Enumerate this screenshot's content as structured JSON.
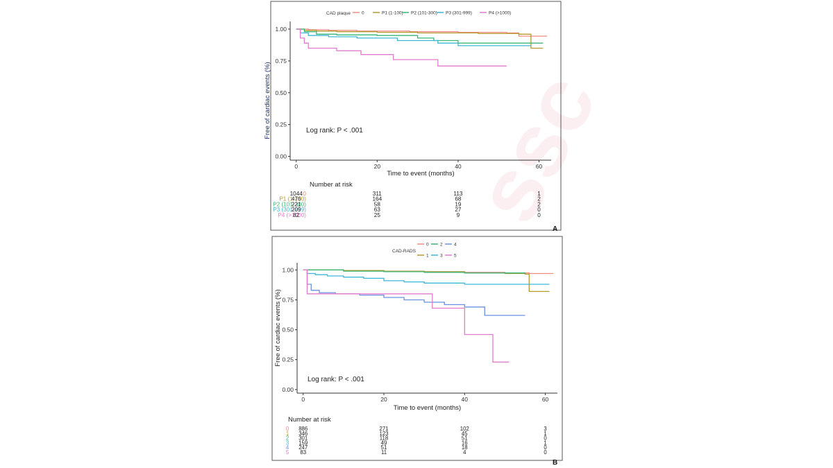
{
  "colors": {
    "s0": "#F08C82",
    "s1": "#B59A2E",
    "s2": "#3AB679",
    "s3": "#3EB7D6",
    "s4": "#6C90E0",
    "s5": "#E07CCB",
    "axis": "#333333",
    "watermark": "#FBE3E6"
  },
  "chart_data": [
    {
      "type": "line",
      "panel_label": "A",
      "title": "",
      "xlabel": "Time to event (months)",
      "ylabel": "Free of cardiac events (%)",
      "xlim": [
        -1.5,
        63
      ],
      "ylim": [
        -0.03,
        1.06
      ],
      "xticks": [
        0,
        20,
        40,
        60
      ],
      "yticks": [
        "0.00",
        "0.25",
        "0.50",
        "0.75",
        "1.00"
      ],
      "legend": {
        "title": "CAD plaque",
        "position": "top",
        "entries": [
          "0",
          "P1 (1-100)",
          "P2 (101-300)",
          "P3 (301-999)",
          "P4 (>1000)"
        ]
      },
      "annotation": "Log rank: P < .001",
      "series": [
        {
          "name": "0",
          "color": "s0",
          "x": [
            0,
            3,
            8,
            15,
            28,
            40,
            52,
            55,
            62
          ],
          "y": [
            1.0,
            0.995,
            0.99,
            0.985,
            0.98,
            0.975,
            0.97,
            0.945,
            0.945
          ]
        },
        {
          "name": "P1 (1-100)",
          "color": "s1",
          "x": [
            0,
            2,
            5,
            10,
            20,
            30,
            45,
            55,
            58,
            61
          ],
          "y": [
            1.0,
            0.99,
            0.985,
            0.98,
            0.975,
            0.97,
            0.965,
            0.96,
            0.85,
            0.85
          ]
        },
        {
          "name": "P2 (101-300)",
          "color": "s2",
          "x": [
            0,
            2,
            5,
            10,
            20,
            30,
            34,
            40,
            61
          ],
          "y": [
            1.0,
            0.98,
            0.96,
            0.955,
            0.95,
            0.93,
            0.91,
            0.89,
            0.89
          ]
        },
        {
          "name": "P3 (301-999)",
          "color": "s3",
          "x": [
            0,
            1,
            3,
            8,
            15,
            25,
            35,
            40,
            58
          ],
          "y": [
            1.0,
            0.97,
            0.95,
            0.94,
            0.93,
            0.91,
            0.89,
            0.87,
            0.87
          ]
        },
        {
          "name": "P4 (>1000)",
          "color": "s5",
          "x": [
            0,
            1,
            2,
            3,
            10,
            16,
            24,
            35,
            52
          ],
          "y": [
            1.0,
            0.93,
            0.89,
            0.85,
            0.83,
            0.8,
            0.76,
            0.71,
            0.71
          ]
        }
      ],
      "risk_table": {
        "title": "Number at risk",
        "times": [
          0,
          20,
          40,
          60
        ],
        "rows": [
          {
            "label": "0",
            "color": "s0",
            "values": [
              "1044",
              "311",
              "113",
              "1"
            ]
          },
          {
            "label": "P1 (1-100)",
            "color": "s1",
            "values": [
              "476",
              "164",
              "68",
              "2"
            ]
          },
          {
            "label": "P2 (101-300)",
            "color": "s2",
            "values": [
              "221",
              "58",
              "19",
              "2"
            ]
          },
          {
            "label": "P3 (301-999)",
            "color": "s3",
            "values": [
              "209",
              "63",
              "27",
              "0"
            ]
          },
          {
            "label": "P4 (>1000)",
            "color": "s5",
            "values": [
              "82",
              "25",
              "9",
              "0"
            ]
          }
        ]
      }
    },
    {
      "type": "line",
      "panel_label": "B",
      "title": "",
      "xlabel": "Time to event (months)",
      "ylabel": "Free of cardiac events (%)",
      "xlim": [
        -1.5,
        63
      ],
      "ylim": [
        -0.03,
        1.06
      ],
      "xticks": [
        0,
        20,
        40,
        60
      ],
      "yticks": [
        "0.00",
        "0.25",
        "0.50",
        "0.75",
        "1.00"
      ],
      "legend": {
        "title": "CAD-RADS",
        "position": "top",
        "entries": [
          "0",
          "1",
          "2",
          "3",
          "4",
          "5"
        ]
      },
      "annotation": "Log rank: P < .001",
      "series": [
        {
          "name": "0",
          "color": "s0",
          "x": [
            0,
            10,
            20,
            30,
            40,
            50,
            56,
            62
          ],
          "y": [
            1.0,
            0.995,
            0.99,
            0.985,
            0.98,
            0.975,
            0.97,
            0.97
          ]
        },
        {
          "name": "1",
          "color": "s1",
          "x": [
            0,
            10,
            20,
            30,
            40,
            50,
            55,
            56,
            61
          ],
          "y": [
            1.0,
            0.995,
            0.99,
            0.985,
            0.975,
            0.97,
            0.965,
            0.82,
            0.82
          ]
        },
        {
          "name": "2",
          "color": "s2",
          "x": [
            0,
            10,
            20,
            30,
            40,
            55
          ],
          "y": [
            1.0,
            0.99,
            0.985,
            0.98,
            0.975,
            0.97
          ]
        },
        {
          "name": "3",
          "color": "s3",
          "x": [
            0,
            1,
            3,
            6,
            10,
            15,
            20,
            25,
            30,
            40,
            61
          ],
          "y": [
            1.0,
            0.97,
            0.96,
            0.95,
            0.94,
            0.93,
            0.91,
            0.9,
            0.89,
            0.88,
            0.88
          ]
        },
        {
          "name": "4",
          "color": "s4",
          "x": [
            0,
            1,
            2,
            4,
            8,
            14,
            20,
            25,
            30,
            35,
            40,
            45,
            55
          ],
          "y": [
            1.0,
            0.88,
            0.83,
            0.81,
            0.8,
            0.79,
            0.77,
            0.75,
            0.73,
            0.71,
            0.69,
            0.62,
            0.62
          ]
        },
        {
          "name": "5",
          "color": "s5",
          "x": [
            0,
            1,
            32,
            40,
            47,
            51
          ],
          "y": [
            1.0,
            0.8,
            0.68,
            0.46,
            0.23,
            0.23
          ]
        }
      ],
      "risk_table": {
        "title": "Number at risk",
        "times": [
          0,
          20,
          40,
          60
        ],
        "rows": [
          {
            "label": "0",
            "color": "s0",
            "values": [
              "886",
              "271",
              "102",
              "3"
            ]
          },
          {
            "label": "1",
            "color": "s1",
            "values": [
              "346",
              "123",
              "45",
              "1"
            ]
          },
          {
            "label": "2",
            "color": "s2",
            "values": [
              "301",
              "118",
              "51",
              "0"
            ]
          },
          {
            "label": "3",
            "color": "s3",
            "values": [
              "159",
              "49",
              "16",
              "1"
            ]
          },
          {
            "label": "4",
            "color": "s4",
            "values": [
              "247",
              "51",
              "18",
              "0"
            ]
          },
          {
            "label": "5",
            "color": "s5",
            "values": [
              "83",
              "11",
              "4",
              "0"
            ]
          }
        ]
      }
    }
  ]
}
